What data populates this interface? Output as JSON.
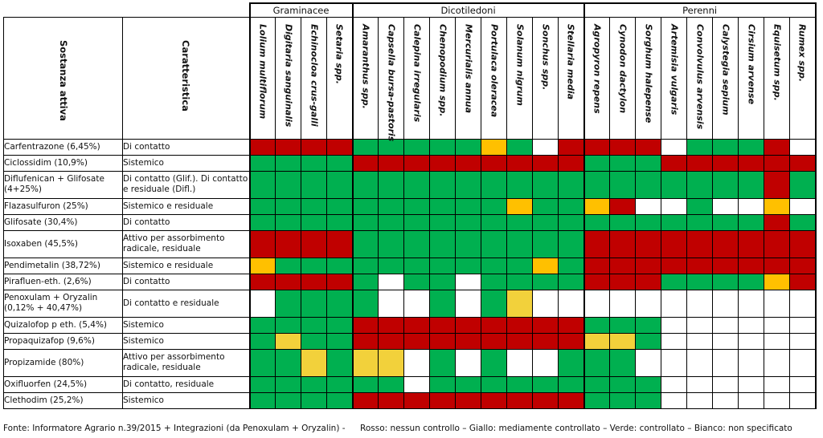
{
  "headers": {
    "substance": "Sostanza attiva",
    "characteristic": "Caratteristica"
  },
  "groups": [
    {
      "name": "Graminacee",
      "span": 4
    },
    {
      "name": "Dicotiledoni",
      "span": 9
    },
    {
      "name": "Perenni",
      "span": 9
    }
  ],
  "species": [
    "Lolium multiflorum",
    "Digitaria sanguinalis",
    "Echinocloa crus-galli",
    "Setaria spp.",
    "Amaranthus spp.",
    "Capsella bursa-pastoris",
    "Calepina irregularis",
    "Chenopodium spp.",
    "Mercurialis annua",
    "Portulaca oleracea",
    "Solanum nigrum",
    "Sonchus spp.",
    "Stellaria media",
    "Agropyron repens",
    "Cynodon dactylon",
    "Sorghum halepense",
    "Artemisia vulgaris",
    "Convolvulus arvensis",
    "Calystegia sepium",
    "Cirsium arvense",
    "Equisetum spp.",
    "Rumex spp."
  ],
  "rows": [
    {
      "substance": "Carfentrazone (6,45%)",
      "characteristic": "Di contatto",
      "tall": false,
      "cells": [
        "R",
        "R",
        "R",
        "R",
        "G",
        "G",
        "G",
        "G",
        "G",
        "Y",
        "G",
        "W",
        "R",
        "R",
        "R",
        "R",
        "W",
        "G",
        "G",
        "G",
        "R",
        "W"
      ]
    },
    {
      "substance": "Ciclossidim (10,9%)",
      "characteristic": "Sistemico",
      "tall": false,
      "cells": [
        "G",
        "G",
        "G",
        "G",
        "R",
        "R",
        "R",
        "R",
        "R",
        "R",
        "R",
        "R",
        "R",
        "G",
        "G",
        "G",
        "R",
        "R",
        "R",
        "R",
        "R",
        "R"
      ]
    },
    {
      "substance": "Diflufenican + Glifosate (4+25%)",
      "characteristic": "Di contatto (Glif.). Di contatto e residuale (Difl.)",
      "tall": true,
      "cells": [
        "G",
        "G",
        "G",
        "G",
        "G",
        "G",
        "G",
        "G",
        "G",
        "G",
        "G",
        "G",
        "G",
        "G",
        "G",
        "G",
        "G",
        "G",
        "G",
        "G",
        "R",
        "G"
      ]
    },
    {
      "substance": "Flazasulfuron (25%)",
      "characteristic": "Sistemico e residuale",
      "tall": false,
      "cells": [
        "G",
        "G",
        "G",
        "G",
        "G",
        "G",
        "G",
        "G",
        "G",
        "G",
        "Y",
        "G",
        "G",
        "Y",
        "R",
        "W",
        "W",
        "G",
        "W",
        "W",
        "Y",
        "W"
      ]
    },
    {
      "substance": "Glifosate (30,4%)",
      "characteristic": "Di contatto",
      "tall": false,
      "cells": [
        "G",
        "G",
        "G",
        "G",
        "G",
        "G",
        "G",
        "G",
        "G",
        "G",
        "G",
        "G",
        "G",
        "G",
        "G",
        "G",
        "G",
        "G",
        "G",
        "G",
        "R",
        "G"
      ]
    },
    {
      "substance": "Isoxaben (45,5%)",
      "characteristic": "Attivo per assorbimento radicale, residuale",
      "tall": true,
      "cells": [
        "R",
        "R",
        "R",
        "R",
        "G",
        "G",
        "G",
        "G",
        "G",
        "G",
        "G",
        "G",
        "G",
        "R",
        "R",
        "R",
        "R",
        "R",
        "R",
        "R",
        "R",
        "R"
      ]
    },
    {
      "substance": "Pendimetalin (38,72%)",
      "characteristic": "Sistemico e residuale",
      "tall": false,
      "cells": [
        "Y",
        "G",
        "G",
        "G",
        "G",
        "G",
        "G",
        "G",
        "G",
        "G",
        "G",
        "Y",
        "G",
        "R",
        "R",
        "R",
        "R",
        "R",
        "R",
        "R",
        "R",
        "R"
      ]
    },
    {
      "substance": "Pirafluen-eth. (2,6%)",
      "characteristic": "Di contatto",
      "tall": false,
      "cells": [
        "R",
        "R",
        "R",
        "R",
        "G",
        "W",
        "G",
        "G",
        "W",
        "G",
        "G",
        "G",
        "G",
        "R",
        "R",
        "R",
        "G",
        "G",
        "G",
        "G",
        "Y",
        "R"
      ]
    },
    {
      "substance": "Penoxulam + Oryzalin (0,12% + 40,47%)",
      "characteristic": "Di contatto e residuale",
      "tall": true,
      "cells": [
        "W",
        "G",
        "G",
        "G",
        "G",
        "W",
        "W",
        "G",
        "W",
        "G",
        "L",
        "W",
        "W",
        "W",
        "W",
        "W",
        "W",
        "W",
        "W",
        "W",
        "W",
        "W"
      ]
    },
    {
      "substance": "Quizalofop p eth. (5,4%)",
      "characteristic": "Sistemico",
      "tall": false,
      "cells": [
        "G",
        "G",
        "G",
        "G",
        "R",
        "R",
        "R",
        "R",
        "R",
        "R",
        "R",
        "R",
        "R",
        "G",
        "G",
        "G",
        "W",
        "W",
        "W",
        "W",
        "W",
        "W"
      ]
    },
    {
      "substance": "Propaquizafop (9,6%)",
      "characteristic": "Sistemico",
      "tall": false,
      "cells": [
        "G",
        "L",
        "G",
        "G",
        "R",
        "R",
        "R",
        "R",
        "R",
        "R",
        "R",
        "R",
        "R",
        "L",
        "L",
        "G",
        "W",
        "W",
        "W",
        "W",
        "W",
        "W"
      ]
    },
    {
      "substance": "Propizamide (80%)",
      "characteristic": "Attivo per assorbimento radicale, residuale",
      "tall": true,
      "cells": [
        "G",
        "G",
        "L",
        "G",
        "L",
        "L",
        "W",
        "G",
        "W",
        "G",
        "W",
        "W",
        "G",
        "G",
        "G",
        "W",
        "W",
        "W",
        "W",
        "W",
        "W",
        "W"
      ]
    },
    {
      "substance": "Oxifluorfen (24,5%)",
      "characteristic": "Di contatto, residuale",
      "tall": false,
      "cells": [
        "G",
        "G",
        "G",
        "G",
        "G",
        "G",
        "W",
        "G",
        "G",
        "G",
        "G",
        "G",
        "G",
        "G",
        "G",
        "G",
        "W",
        "W",
        "W",
        "W",
        "W",
        "W"
      ]
    },
    {
      "substance": "Clethodim (25,2%)",
      "characteristic": "Sistemico",
      "tall": false,
      "cells": [
        "G",
        "G",
        "G",
        "G",
        "R",
        "R",
        "R",
        "R",
        "R",
        "R",
        "R",
        "R",
        "R",
        "G",
        "G",
        "G",
        "W",
        "W",
        "W",
        "W",
        "W",
        "W"
      ]
    }
  ],
  "colors": {
    "R": "#c00000",
    "Y": "#ffc000",
    "L": "#f2d13b",
    "G": "#00b050",
    "W": "#ffffff"
  },
  "footer": {
    "source": "Fonte: Informatore Agrario n.39/2015 + Integrazioni (da Penoxulam + Oryzalin) -",
    "legend": "Rosso: nessun controllo – Giallo: mediamente controllato – Verde: controllato – Bianco: non specificato"
  }
}
